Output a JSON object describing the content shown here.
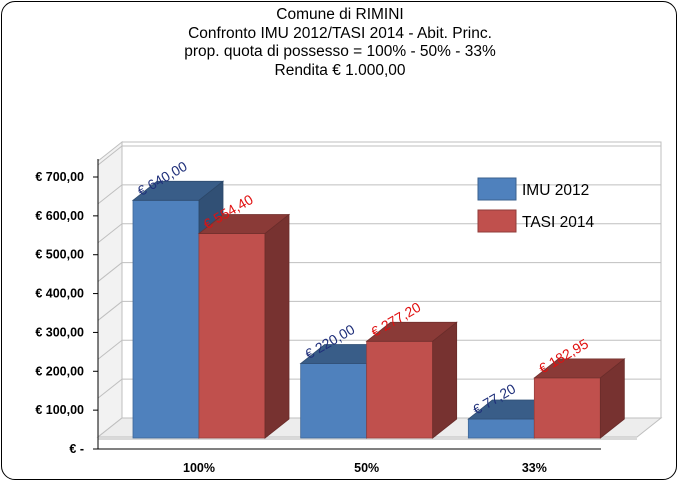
{
  "chart_data": {
    "type": "bar",
    "title": [
      "Comune di RIMINI",
      "Confronto IMU 2012/TASI 2014 - Abit. Princ.",
      "prop. quota di possesso = 100% - 50% - 33%",
      "Rendita € 1.000,00"
    ],
    "categories": [
      "100%",
      "50%",
      "33%"
    ],
    "series": [
      {
        "name": "IMU 2012",
        "values": [
          640.0,
          220.0,
          77.2
        ],
        "labels": [
          "€ 640,00",
          "€ 220,00",
          "€ 77,20"
        ],
        "color": "#4f81bd",
        "label_color": "#1f2f7a"
      },
      {
        "name": "TASI 2014",
        "values": [
          554.4,
          277.2,
          182.95
        ],
        "labels": [
          "€ 554,40",
          "€ 277,20",
          "€ 182,95"
        ],
        "color": "#c0504d",
        "label_color": "#e01010"
      }
    ],
    "ylim": [
      0,
      700
    ],
    "yticks": [
      0,
      100,
      200,
      300,
      400,
      500,
      600,
      700
    ],
    "ytick_labels": [
      "€ -",
      "€ 100,00",
      "€ 200,00",
      "€ 300,00",
      "€ 400,00",
      "€ 500,00",
      "€ 600,00",
      "€ 700,00"
    ],
    "grid": true,
    "legend": "right",
    "style": "3d-clustered"
  }
}
